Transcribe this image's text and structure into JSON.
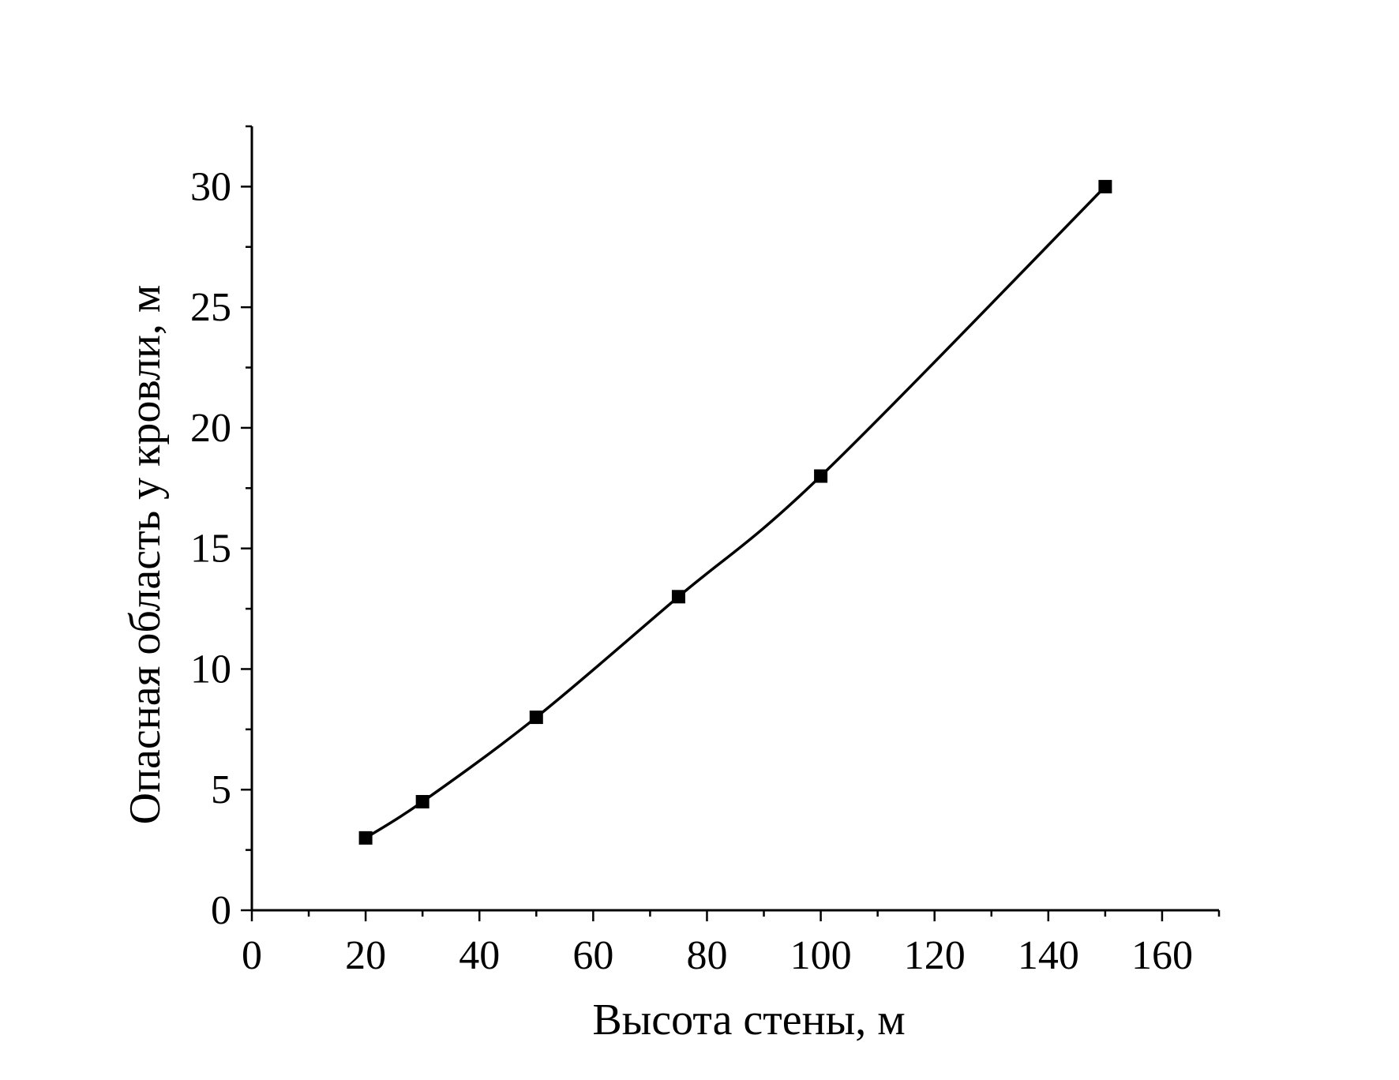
{
  "chart_data": {
    "type": "line",
    "xlabel": "Высота стены, м",
    "ylabel": "Опасная область у кровли, м",
    "xlim": [
      0,
      170
    ],
    "ylim": [
      0,
      32.5
    ],
    "x_ticks": [
      "0",
      "20",
      "40",
      "60",
      "80",
      "100",
      "120",
      "140",
      "160"
    ],
    "y_ticks": [
      "0",
      "5",
      "10",
      "15",
      "20",
      "25",
      "30"
    ],
    "grid": false,
    "marker": "square",
    "series": [
      {
        "x": [
          20,
          30,
          50,
          75,
          100,
          150
        ],
        "y": [
          3,
          4.5,
          8,
          13,
          18,
          30
        ]
      }
    ]
  }
}
